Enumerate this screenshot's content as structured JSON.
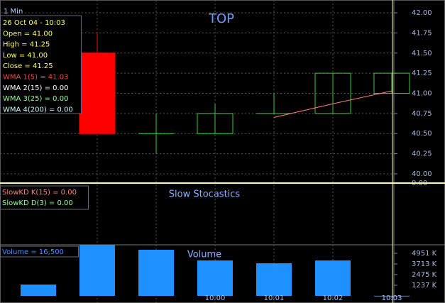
{
  "header": {
    "interval": "1 Min"
  },
  "info": {
    "lines": [
      {
        "text": "26 Oct 04 - 10:03",
        "color": "#ffff66"
      },
      {
        "text": "Open =  41.00",
        "color": "#ffff66"
      },
      {
        "text": "High =  41.25",
        "color": "#ffff66"
      },
      {
        "text": "Low =  41.00",
        "color": "#ffff66"
      },
      {
        "text": "Close =  41.25",
        "color": "#ffff66"
      },
      {
        "text": "WMA 1(5) = 41.03",
        "color": "#ff4040"
      },
      {
        "text": "WMA 2(15) = 0.00",
        "color": "#ffffff"
      },
      {
        "text": "WMA 3(25) = 0.00",
        "color": "#99ff99"
      },
      {
        "text": "WMA 4(200) = 0.00",
        "color": "#ccffff"
      }
    ]
  },
  "stochastics": {
    "title": "Slow Stocastics",
    "axis_label": "0.00",
    "lines": [
      {
        "text": "SlowKD K(15) = 0.00",
        "color": "#ff8080"
      },
      {
        "text": "SlowKD D(3) = 0.00",
        "color": "#99ff99"
      }
    ]
  },
  "chart_data": [
    {
      "type": "candlestick",
      "title": "TOP",
      "open": [
        null,
        41.5,
        40.5,
        40.5,
        40.75,
        40.75,
        41.0
      ],
      "high": [
        null,
        41.75,
        40.75,
        40.87,
        41.0,
        41.25,
        41.25
      ],
      "low": [
        null,
        40.5,
        40.25,
        40.5,
        40.75,
        40.75,
        41.0
      ],
      "close": [
        null,
        40.5,
        40.5,
        40.75,
        40.75,
        41.25,
        41.25
      ],
      "up_color": "#33cc33",
      "down_color": "#ff0000",
      "series": [
        {
          "name": "WMA 1(5)",
          "color": "#ff8080",
          "values": [
            null,
            null,
            null,
            null,
            40.7,
            40.87,
            41.03
          ]
        }
      ],
      "ylim": [
        39.885,
        42.115
      ],
      "yticks": [
        {
          "value": 42,
          "label": "42.00"
        },
        {
          "value": 41.75,
          "label": "41.75"
        },
        {
          "value": 41.5,
          "label": "41.50"
        },
        {
          "value": 41.25,
          "label": "41.25"
        },
        {
          "value": 41,
          "label": "41.00"
        },
        {
          "value": 40.75,
          "label": "40.75"
        },
        {
          "value": 40.5,
          "label": "40.50"
        },
        {
          "value": 40.25,
          "label": "40.25"
        },
        {
          "value": 40,
          "label": "40.00"
        }
      ],
      "grid": true
    },
    {
      "type": "bar",
      "title": "Volume",
      "legend": "Volume = 16,500",
      "categories": [
        null,
        null,
        null,
        "10:00",
        "10:01",
        "10:02",
        "10:03"
      ],
      "values": [
        1320,
        5940,
        5360,
        4120,
        3790,
        4120,
        16.5
      ],
      "color": "#1e90ff",
      "ylim": [
        -825,
        5938
      ],
      "yticks": [
        {
          "value": 4951,
          "label": "4951 K"
        },
        {
          "value": 3713,
          "label": "3713 K"
        },
        {
          "value": 2475,
          "label": "2475 K"
        },
        {
          "value": 1237,
          "label": "1237 K"
        }
      ]
    }
  ]
}
